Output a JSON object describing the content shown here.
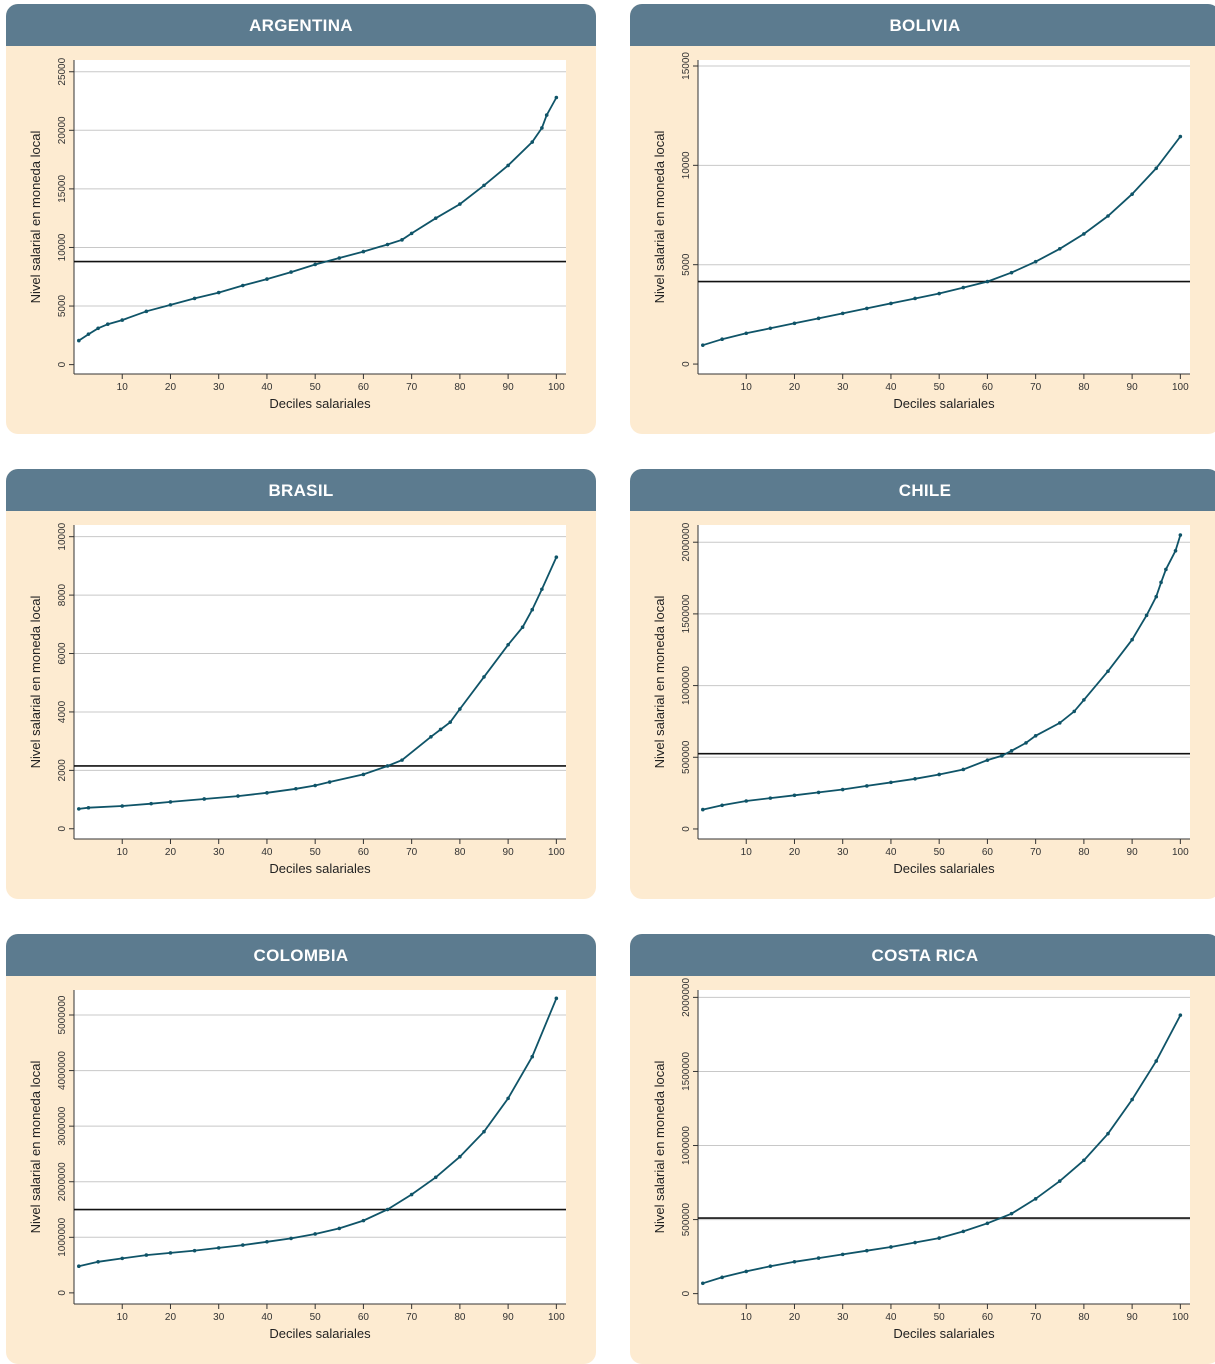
{
  "chart_data": [
    {
      "type": "line",
      "title": "ARGENTINA",
      "xlabel": "Deciles salariales",
      "ylabel": "Nivel salarial en moneda local",
      "xlim": [
        0,
        102
      ],
      "ylim": [
        -800,
        26000
      ],
      "xticks": [
        "10",
        "20",
        "30",
        "40",
        "50",
        "60",
        "70",
        "80",
        "90",
        "100"
      ],
      "yticks": [
        "0",
        "5000",
        "10000",
        "15000",
        "20000",
        "25000"
      ],
      "reference_line": 8800,
      "series": [
        {
          "x": [
            1,
            3,
            5,
            7,
            10,
            15,
            20,
            25,
            30,
            35,
            40,
            45,
            50,
            55,
            60,
            65,
            68,
            70,
            75,
            80,
            85,
            90,
            95,
            97,
            98,
            100
          ],
          "values": [
            2050,
            2600,
            3100,
            3450,
            3800,
            4550,
            5100,
            5650,
            6150,
            6750,
            7300,
            7900,
            8550,
            9100,
            9650,
            10250,
            10650,
            11200,
            12500,
            13700,
            15300,
            17000,
            19000,
            20200,
            21300,
            22800
          ]
        }
      ]
    },
    {
      "type": "line",
      "title": "BOLIVIA",
      "xlabel": "Deciles salariales",
      "ylabel": "Nivel salarial en moneda local",
      "xlim": [
        0,
        102
      ],
      "ylim": [
        -500,
        15300
      ],
      "xticks": [
        "10",
        "20",
        "30",
        "40",
        "50",
        "60",
        "70",
        "80",
        "90",
        "100"
      ],
      "yticks": [
        "0",
        "5000",
        "10000",
        "15000"
      ],
      "reference_line": 4150,
      "series": [
        {
          "x": [
            1,
            5,
            10,
            15,
            20,
            25,
            30,
            35,
            40,
            45,
            50,
            55,
            60,
            65,
            70,
            75,
            80,
            85,
            90,
            95,
            100
          ],
          "values": [
            950,
            1250,
            1550,
            1800,
            2050,
            2300,
            2550,
            2800,
            3050,
            3300,
            3550,
            3850,
            4150,
            4600,
            5150,
            5800,
            6550,
            7450,
            8550,
            9850,
            11450
          ]
        }
      ]
    },
    {
      "type": "line",
      "title": "BRASIL",
      "xlabel": "Deciles salariales",
      "ylabel": "Nivel salarial en moneda local",
      "xlim": [
        0,
        102
      ],
      "ylim": [
        -350,
        10400
      ],
      "xticks": [
        "10",
        "20",
        "30",
        "40",
        "50",
        "60",
        "70",
        "80",
        "90",
        "100"
      ],
      "yticks": [
        "0",
        "2000",
        "4000",
        "6000",
        "8000",
        "10000"
      ],
      "reference_line": 2150,
      "series": [
        {
          "x": [
            1,
            3,
            10,
            16,
            20,
            27,
            34,
            40,
            46,
            50,
            53,
            60,
            65,
            68,
            74,
            76,
            78,
            80,
            85,
            90,
            93,
            95,
            97,
            100
          ],
          "values": [
            680,
            720,
            780,
            860,
            920,
            1020,
            1120,
            1230,
            1370,
            1480,
            1600,
            1860,
            2150,
            2350,
            3150,
            3400,
            3650,
            4100,
            5200,
            6300,
            6900,
            7500,
            8200,
            9300
          ]
        }
      ]
    },
    {
      "type": "line",
      "title": "CHILE",
      "xlabel": "Deciles salariales",
      "ylabel": "Nivel salarial en moneda local",
      "xlim": [
        0,
        102
      ],
      "ylim": [
        -70000,
        2120000
      ],
      "xticks": [
        "10",
        "20",
        "30",
        "40",
        "50",
        "60",
        "70",
        "80",
        "90",
        "100"
      ],
      "yticks": [
        "0",
        "500000",
        "1000000",
        "1500000",
        "2000000"
      ],
      "reference_line": 525000,
      "series": [
        {
          "x": [
            1,
            5,
            10,
            15,
            20,
            25,
            30,
            35,
            40,
            45,
            50,
            55,
            60,
            63,
            65,
            68,
            70,
            75,
            78,
            80,
            85,
            90,
            93,
            95,
            96,
            97,
            99,
            100
          ],
          "values": [
            135000,
            165000,
            195000,
            215000,
            235000,
            255000,
            275000,
            300000,
            325000,
            350000,
            380000,
            415000,
            480000,
            510000,
            545000,
            600000,
            650000,
            740000,
            820000,
            900000,
            1100000,
            1320000,
            1490000,
            1620000,
            1720000,
            1810000,
            1940000,
            2050000
          ]
        }
      ]
    },
    {
      "type": "line",
      "title": "COLOMBIA",
      "xlabel": "Deciles salariales",
      "ylabel": "Nivel salarial en moneda local",
      "xlim": [
        0,
        102
      ],
      "ylim": [
        -200000,
        5450000
      ],
      "xticks": [
        "10",
        "20",
        "30",
        "40",
        "50",
        "60",
        "70",
        "80",
        "90",
        "100"
      ],
      "yticks": [
        "0",
        "1000000",
        "2000000",
        "3000000",
        "4000000",
        "5000000"
      ],
      "reference_line": 1500000,
      "series": [
        {
          "x": [
            1,
            5,
            10,
            15,
            20,
            25,
            30,
            35,
            40,
            45,
            50,
            55,
            60,
            65,
            70,
            75,
            80,
            85,
            90,
            95,
            100
          ],
          "values": [
            480000,
            560000,
            620000,
            680000,
            720000,
            760000,
            810000,
            860000,
            920000,
            980000,
            1060000,
            1160000,
            1300000,
            1500000,
            1770000,
            2080000,
            2450000,
            2900000,
            3500000,
            4250000,
            5300000
          ]
        }
      ]
    },
    {
      "type": "line",
      "title": "COSTA RICA",
      "xlabel": "Deciles salariales",
      "ylabel": "Nivel salarial en moneda local",
      "xlim": [
        0,
        102
      ],
      "ylim": [
        -70000,
        2050000
      ],
      "xticks": [
        "10",
        "20",
        "30",
        "40",
        "50",
        "60",
        "70",
        "80",
        "90",
        "100"
      ],
      "yticks": [
        "0",
        "500000",
        "1000000",
        "1500000",
        "2000000"
      ],
      "reference_line": 510000,
      "series": [
        {
          "x": [
            1,
            5,
            10,
            15,
            20,
            25,
            30,
            35,
            40,
            45,
            50,
            55,
            60,
            65,
            70,
            75,
            80,
            85,
            90,
            95,
            100
          ],
          "values": [
            70000,
            110000,
            150000,
            185000,
            215000,
            240000,
            265000,
            290000,
            315000,
            345000,
            375000,
            420000,
            475000,
            540000,
            640000,
            760000,
            900000,
            1080000,
            1310000,
            1570000,
            1880000
          ]
        }
      ]
    }
  ]
}
